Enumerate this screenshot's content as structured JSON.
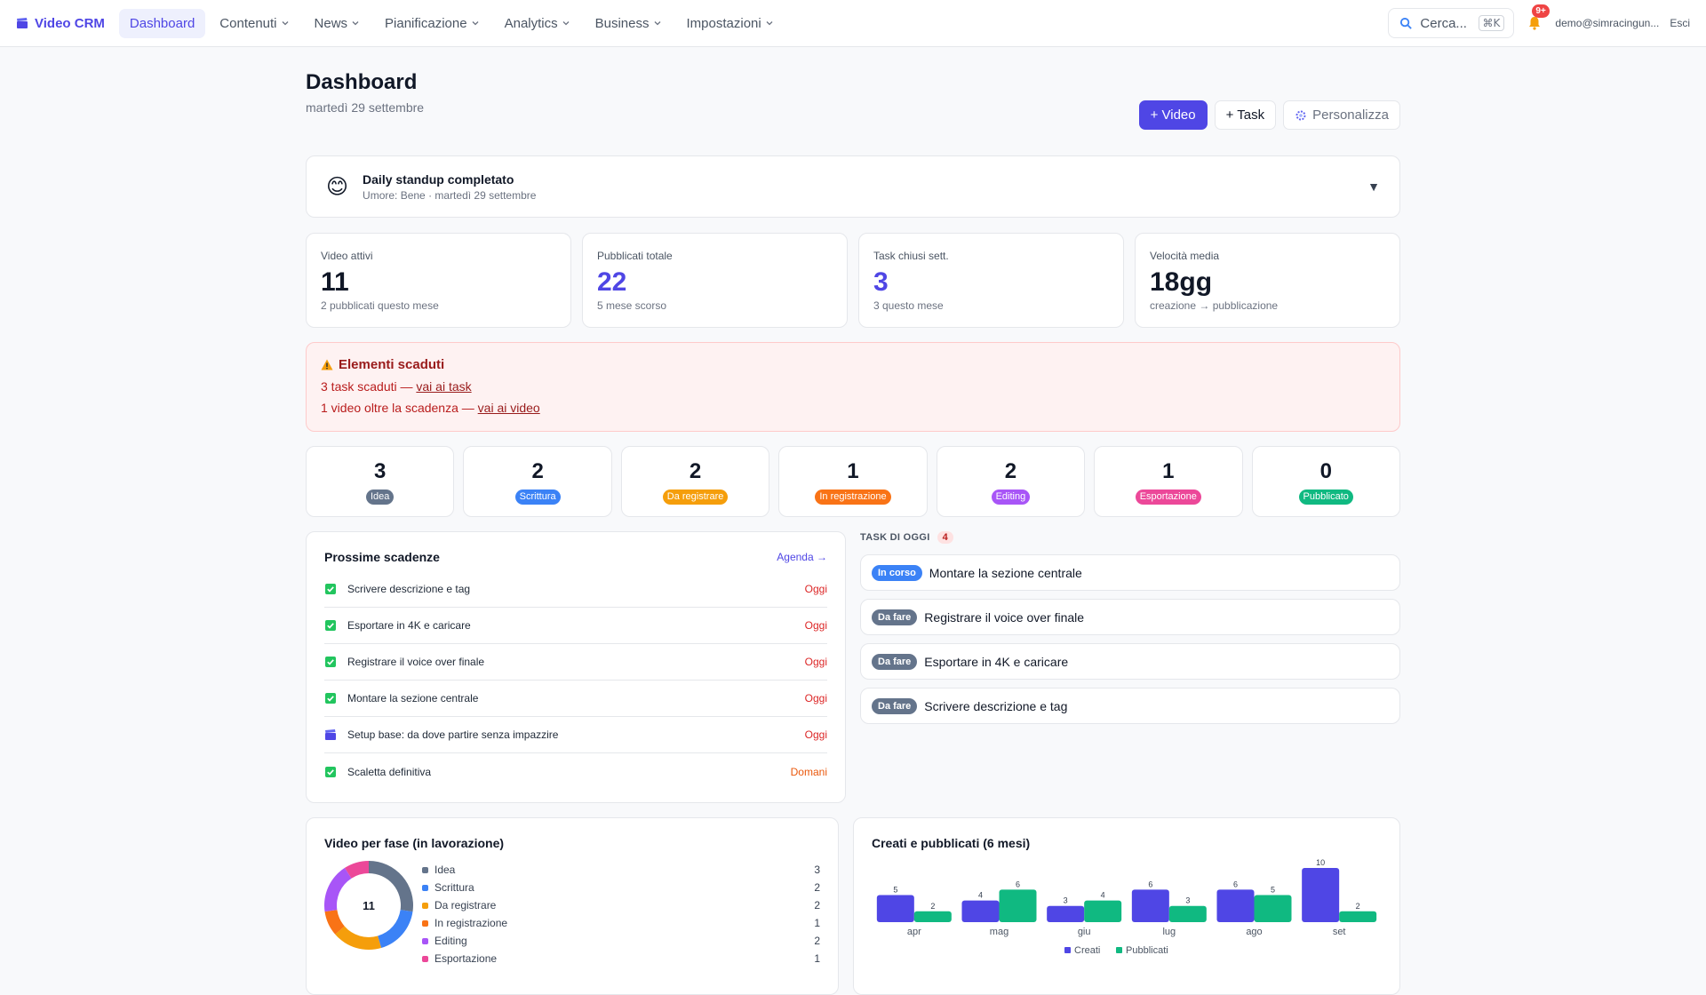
{
  "brand": {
    "name": "Video CRM"
  },
  "nav": {
    "items": [
      {
        "label": "Dashboard",
        "active": true,
        "dropdown": false
      },
      {
        "label": "Contenuti",
        "active": false,
        "dropdown": true
      },
      {
        "label": "News",
        "active": false,
        "dropdown": true
      },
      {
        "label": "Pianificazione",
        "active": false,
        "dropdown": true
      },
      {
        "label": "Analytics",
        "active": false,
        "dropdown": true
      },
      {
        "label": "Business",
        "active": false,
        "dropdown": true
      },
      {
        "label": "Impostazioni",
        "active": false,
        "dropdown": true
      }
    ],
    "search_label": "Cerca...",
    "search_shortcut": "⌘K",
    "notifications_badge": "9+",
    "user_email": "demo@simracingun...",
    "logout_label": "Esci"
  },
  "header": {
    "title": "Dashboard",
    "date": "martedì 29 settembre",
    "new_video_label": "+ Video",
    "new_task_label": "+ Task",
    "customize_label": "Personalizza"
  },
  "standup": {
    "emoji": "😊",
    "title": "Daily standup completato",
    "subtitle": "Umore: Bene · martedì 29 settembre",
    "toggle": "▼"
  },
  "kpis": [
    {
      "label": "Video attivi",
      "value": "11",
      "sub": "2 pubblicati questo mese",
      "color": "#111827"
    },
    {
      "label": "Pubblicati totale",
      "value": "22",
      "sub": "5 mese scorso",
      "color": "#4f46e5"
    },
    {
      "label": "Task chiusi sett.",
      "value": "3",
      "sub": "3 questo mese",
      "color": "#4f46e5"
    },
    {
      "label": "Velocità media",
      "value": "18gg",
      "sub": "creazione → pubblicazione",
      "color": "#111827"
    }
  ],
  "alert": {
    "title": "Elementi scaduti",
    "line1_text": "3 task scaduti — ",
    "line1_link": "vai ai task",
    "line2_text": "1 video oltre la scadenza — ",
    "line2_link": "vai ai video"
  },
  "phases": [
    {
      "count": "3",
      "label": "Idea",
      "color": "#64748b"
    },
    {
      "count": "2",
      "label": "Scrittura",
      "color": "#3b82f6"
    },
    {
      "count": "2",
      "label": "Da registrare",
      "color": "#f59e0b"
    },
    {
      "count": "1",
      "label": "In registrazione",
      "color": "#f97316"
    },
    {
      "count": "2",
      "label": "Editing",
      "color": "#a855f7"
    },
    {
      "count": "1",
      "label": "Esportazione",
      "color": "#ec4899"
    },
    {
      "count": "0",
      "label": "Pubblicato",
      "color": "#10b981"
    }
  ],
  "deadlines": {
    "title": "Prossime scadenze",
    "link": "Agenda →",
    "items": [
      {
        "icon": "check-icon",
        "label": "Scrivere descrizione e tag",
        "due": "Oggi",
        "due_color": "#dc2626"
      },
      {
        "icon": "check-icon",
        "label": "Esportare in 4K e caricare",
        "due": "Oggi",
        "due_color": "#dc2626"
      },
      {
        "icon": "check-icon",
        "label": "Registrare il voice over finale",
        "due": "Oggi",
        "due_color": "#dc2626"
      },
      {
        "icon": "check-icon",
        "label": "Montare la sezione centrale",
        "due": "Oggi",
        "due_color": "#dc2626"
      },
      {
        "icon": "clapper-icon",
        "label": "Setup base: da dove partire senza impazzire",
        "due": "Oggi",
        "due_color": "#dc2626"
      },
      {
        "icon": "check-icon",
        "label": "Scaletta definitiva",
        "due": "Domani",
        "due_color": "#ea580c"
      }
    ]
  },
  "today_tasks": {
    "title": "TASK DI OGGI",
    "count": "4",
    "items": [
      {
        "status": "In corso",
        "status_color": "#3b82f6",
        "label": "Montare la sezione centrale"
      },
      {
        "status": "Da fare",
        "status_color": "#64748b",
        "label": "Registrare il voice over finale"
      },
      {
        "status": "Da fare",
        "status_color": "#64748b",
        "label": "Esportare in 4K e caricare"
      },
      {
        "status": "Da fare",
        "status_color": "#64748b",
        "label": "Scrivere descrizione e tag"
      }
    ]
  },
  "chart_data": [
    {
      "type": "pie",
      "title": "Video per fase (in lavorazione)",
      "center_label": "11",
      "categories": [
        "Idea",
        "Scrittura",
        "Da registrare",
        "In registrazione",
        "Editing",
        "Esportazione"
      ],
      "values": [
        3,
        2,
        2,
        1,
        2,
        1
      ],
      "colors": [
        "#64748b",
        "#3b82f6",
        "#f59e0b",
        "#f97316",
        "#a855f7",
        "#ec4899"
      ]
    },
    {
      "type": "bar",
      "title": "Creati e pubblicati (6 mesi)",
      "categories": [
        "apr",
        "mag",
        "giu",
        "lug",
        "ago",
        "set"
      ],
      "series": [
        {
          "name": "Creati",
          "values": [
            5,
            4,
            3,
            6,
            6,
            10
          ],
          "color": "#4f46e5"
        },
        {
          "name": "Pubblicati",
          "values": [
            2,
            6,
            4,
            3,
            5,
            2
          ],
          "color": "#10b981"
        }
      ],
      "ylim": [
        0,
        10
      ],
      "legend_position": "bottom"
    }
  ]
}
